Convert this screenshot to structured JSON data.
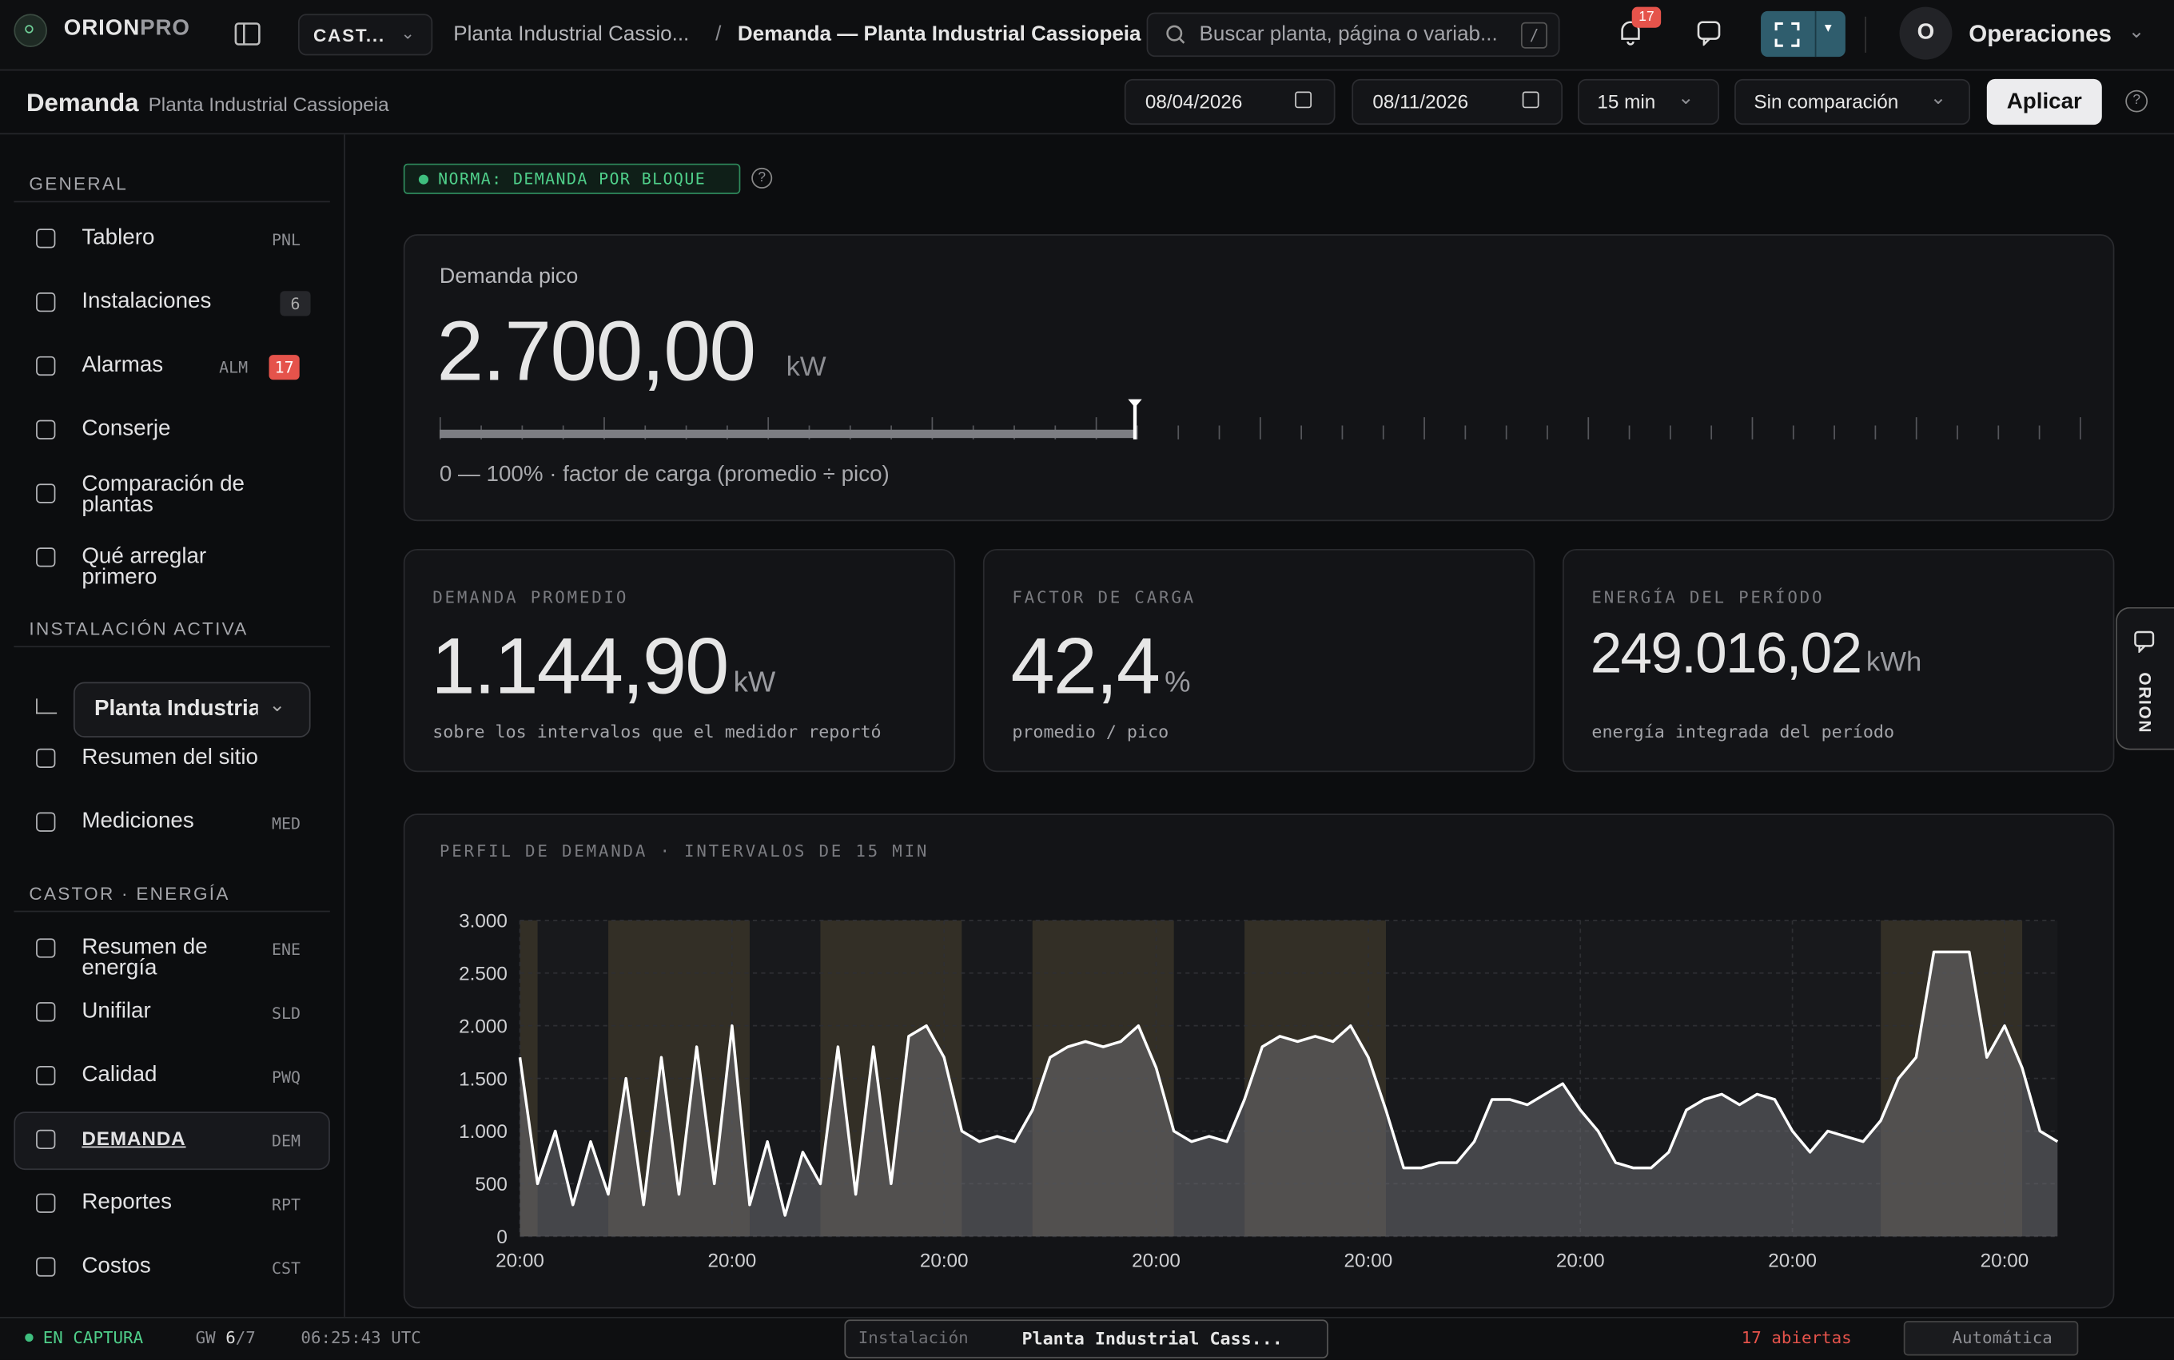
{
  "brand": {
    "name": "ORION",
    "suffix": "PRO"
  },
  "topbar": {
    "site_select": "CAST...",
    "breadcrumb_parent": "Planta Industrial Cassio...",
    "breadcrumb_sep": "/",
    "breadcrumb_current": "Demanda — Planta Industrial Cassiopeia",
    "search": "Buscar planta, página o variab...",
    "search_key": "/",
    "notifications": "17",
    "avatar": "O",
    "user": "Operaciones"
  },
  "subheader": {
    "title": "Demanda",
    "subtitle": "Planta Industrial Cassiopeia",
    "date_from": "08/04/2026",
    "date_to": "08/11/2026",
    "interval": "15 min",
    "compare": "Sin comparación",
    "apply": "Aplicar"
  },
  "sidebar": {
    "sections": [
      {
        "heading": "GENERAL",
        "items": [
          {
            "label": "Tablero",
            "code": "PNL"
          },
          {
            "label": "Instalaciones",
            "count": "6"
          },
          {
            "label": "Alarmas",
            "code": "ALM",
            "count": "17",
            "count_color": "#e5534b"
          },
          {
            "label": "Conserje"
          },
          {
            "label": "Comparación de plantas"
          },
          {
            "label": "Qué arreglar primero"
          }
        ]
      },
      {
        "heading": "INSTALACIÓN ACTIVA",
        "select": "Planta Industria",
        "items": [
          {
            "label": "Resumen del sitio"
          },
          {
            "label": "Mediciones",
            "code": "MED"
          }
        ]
      },
      {
        "heading": "CASTOR · ENERGÍA",
        "items": [
          {
            "label": "Resumen de energía",
            "code": "ENE"
          },
          {
            "label": "Unifilar",
            "code": "SLD"
          },
          {
            "label": "Calidad",
            "code": "PWQ"
          },
          {
            "label": "DEMANDA",
            "code": "DEM",
            "active": true
          },
          {
            "label": "Reportes",
            "code": "RPT"
          },
          {
            "label": "Costos",
            "code": "CST"
          }
        ]
      }
    ]
  },
  "badge": "NORMA: DEMANDA POR BLOQUE",
  "peak": {
    "label": "Demanda pico",
    "value": "2.700,00",
    "unit": "kW",
    "caption": "0 — 100% · factor de carga (promedio ÷ pico)",
    "gauge_percent": 42.4
  },
  "kpis": [
    {
      "label": "DEMANDA PROMEDIO",
      "value": "1.144,90",
      "unit": "kW",
      "caption": "sobre los intervalos que el medidor reportó"
    },
    {
      "label": "FACTOR DE CARGA",
      "value": "42,4",
      "unit": "%",
      "caption": "promedio / pico"
    },
    {
      "label": "ENERGÍA DEL PERÍODO",
      "value": "249.016,02",
      "unit": "kWh",
      "caption": "energía integrada del período"
    }
  ],
  "side_tab": "ORION",
  "status": {
    "capture": "EN CAPTURA",
    "gw": "GW",
    "gw_on": "6",
    "gw_total": "/7",
    "clock": "06:25:43 UTC",
    "scope_label": "Instalación",
    "scope": "Planta Industrial Cass...",
    "alerts": "17 abiertas",
    "mode": "Automática"
  },
  "chart_data": {
    "type": "line",
    "title": "PERFIL DE DEMANDA · INTERVALOS DE 15 MIN",
    "x": [
      0,
      2,
      4,
      6,
      8,
      10,
      12,
      14,
      16,
      18,
      20,
      22,
      24,
      26,
      28,
      30,
      32,
      34,
      36,
      38,
      40,
      42,
      44,
      46,
      48,
      50,
      52,
      54,
      56,
      58,
      60,
      62,
      64,
      66,
      68,
      70,
      72,
      74,
      76,
      78,
      80,
      82,
      84,
      86,
      88,
      90,
      92,
      94,
      96,
      98,
      100,
      102,
      104,
      106,
      108,
      110,
      112,
      114,
      116,
      118,
      120,
      122,
      124,
      126,
      128,
      130,
      132,
      134,
      136,
      138,
      140,
      142,
      144,
      146,
      148,
      150,
      152,
      154,
      156,
      158,
      160,
      162,
      164,
      166,
      168,
      170,
      172,
      174
    ],
    "series": [
      {
        "name": "Demanda",
        "color": "#ffffff",
        "values": [
          1700,
          500,
          1000,
          300,
          900,
          400,
          1500,
          300,
          1700,
          400,
          1800,
          500,
          2000,
          300,
          900,
          200,
          800,
          500,
          1800,
          400,
          1800,
          500,
          1900,
          2000,
          1700,
          1000,
          900,
          950,
          900,
          1200,
          1700,
          1800,
          1850,
          1800,
          1850,
          2000,
          1600,
          1000,
          900,
          950,
          900,
          1300,
          1800,
          1900,
          1850,
          1900,
          1850,
          2000,
          1700,
          1200,
          650,
          650,
          700,
          700,
          900,
          1300,
          1300,
          1250,
          1350,
          1450,
          1200,
          1000,
          700,
          650,
          650,
          800,
          1200,
          1300,
          1350,
          1250,
          1350,
          1300,
          1000,
          800,
          1000,
          950,
          900,
          1100,
          1500,
          1700,
          2700,
          2700,
          2700,
          1700,
          2000,
          1600,
          1000,
          900
        ]
      }
    ],
    "peak_periods": [
      [
        0,
        2
      ],
      [
        10,
        26
      ],
      [
        34,
        50
      ],
      [
        58,
        74
      ],
      [
        82,
        98
      ],
      [
        154,
        170
      ]
    ],
    "xlim": [
      0,
      174
    ],
    "xticks": [
      {
        "value": 0,
        "label": "20:00"
      },
      {
        "value": 24,
        "label": "20:00"
      },
      {
        "value": 48,
        "label": "20:00"
      },
      {
        "value": 72,
        "label": "20:00"
      },
      {
        "value": 96,
        "label": "20:00"
      },
      {
        "value": 120,
        "label": "20:00"
      },
      {
        "value": 144,
        "label": "20:00"
      },
      {
        "value": 168,
        "label": "20:00"
      }
    ],
    "ylim": [
      0,
      3000
    ],
    "yticks": [
      0,
      500,
      {
        "value": 1000,
        "label": "1.000"
      },
      {
        "value": 1500,
        "label": "1.500"
      },
      {
        "value": 2000,
        "label": "2.000"
      },
      {
        "value": 2500,
        "label": "2.500"
      },
      {
        "value": 3000,
        "label": "3.000"
      }
    ],
    "grid": true
  }
}
